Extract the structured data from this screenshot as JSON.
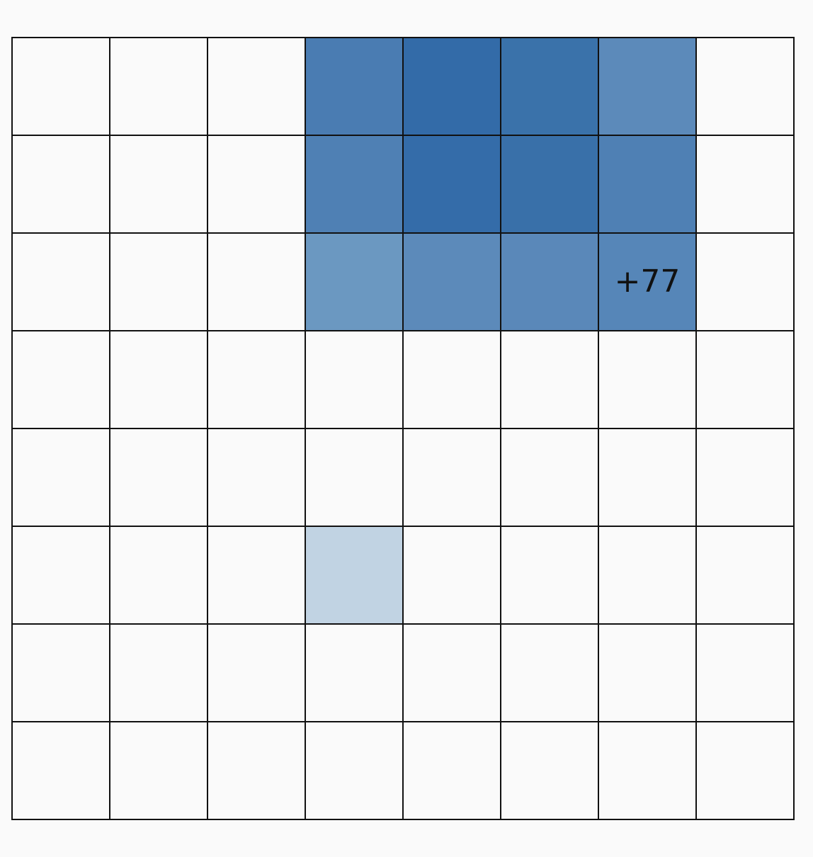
{
  "board": {
    "rows": 8,
    "cols": 8,
    "empty_color": "#fafafa",
    "grid_color": "#111111",
    "cells": [
      {
        "row": 0,
        "col": 3,
        "color": "#4a7cb2"
      },
      {
        "row": 0,
        "col": 4,
        "color": "#336ba8"
      },
      {
        "row": 0,
        "col": 5,
        "color": "#3a72aa"
      },
      {
        "row": 0,
        "col": 6,
        "color": "#5c8aba"
      },
      {
        "row": 1,
        "col": 3,
        "color": "#4f80b4"
      },
      {
        "row": 1,
        "col": 4,
        "color": "#346ca9"
      },
      {
        "row": 1,
        "col": 5,
        "color": "#3970a9"
      },
      {
        "row": 1,
        "col": 6,
        "color": "#4f80b4"
      },
      {
        "row": 2,
        "col": 3,
        "color": "#6b98c1"
      },
      {
        "row": 2,
        "col": 4,
        "color": "#5c8aba"
      },
      {
        "row": 2,
        "col": 5,
        "color": "#5a88b9"
      },
      {
        "row": 2,
        "col": 6,
        "color": "#5686b8",
        "label": "+77"
      },
      {
        "row": 5,
        "col": 3,
        "color": "#c1d3e3"
      }
    ]
  }
}
